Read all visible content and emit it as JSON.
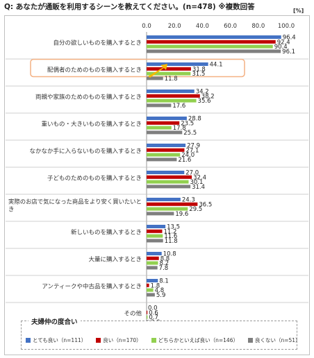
{
  "question": {
    "prefix": "Q:",
    "text": "あなたが通販を利用するシーンを教えてください。(n=478) ※複数回答"
  },
  "unit_label": "[%]",
  "legend": {
    "title": "夫婦仲の度合い",
    "items": [
      {
        "label": "とても良い（n=111）",
        "color": "#4472c4"
      },
      {
        "label": "良い（n=170）",
        "color": "#c00000"
      },
      {
        "label": "どちらかといえば良い（n=146）",
        "color": "#92d050"
      },
      {
        "label": "良くない（n=51）",
        "color": "#7f7f7f"
      }
    ]
  },
  "chart_data": {
    "type": "bar",
    "orientation": "horizontal",
    "xlim": [
      0,
      100
    ],
    "xticks": [
      "0.0",
      "20.0",
      "40.0",
      "60.0",
      "80.0",
      "100.0"
    ],
    "categories": [
      "自分の欲しいものを購入するとき",
      "配偶者のためのものを購入するとき",
      "両親や家族のためのものを購入するとき",
      "重いもの・大きいものを購入するとき",
      "なかなか手に入らないものを購入するとき",
      "子どものためのものを購入するとき",
      "実際のお店で気になった商品をより安く買いたいとき",
      "新しいものを購入するとき",
      "大量に購入するとき",
      "アンティークや中古品を購入するとき",
      "その他"
    ],
    "series": [
      {
        "name": "とても良い（n=111）",
        "color": "#4472c4",
        "values": [
          96.4,
          44.1,
          34.2,
          28.8,
          27.9,
          27.0,
          24.3,
          13.5,
          10.8,
          8.1,
          0.0
        ]
      },
      {
        "name": "良い（n=170）",
        "color": "#c00000",
        "values": [
          92.4,
          31.8,
          38.2,
          23.5,
          27.1,
          32.4,
          36.5,
          11.2,
          8.8,
          1.8,
          0.6
        ]
      },
      {
        "name": "どちらかといえば良い（n=146）",
        "color": "#92d050",
        "values": [
          90.4,
          31.5,
          35.6,
          17.8,
          24.0,
          30.1,
          29.5,
          11.6,
          8.2,
          4.8,
          0.7
        ]
      },
      {
        "name": "良くない（n=51）",
        "color": "#7f7f7f",
        "values": [
          96.1,
          11.8,
          17.6,
          25.5,
          21.6,
          31.4,
          19.6,
          11.8,
          7.8,
          5.9,
          2.0
        ]
      }
    ],
    "highlight_category_index": 1,
    "highlight_color": "#f4b183"
  }
}
